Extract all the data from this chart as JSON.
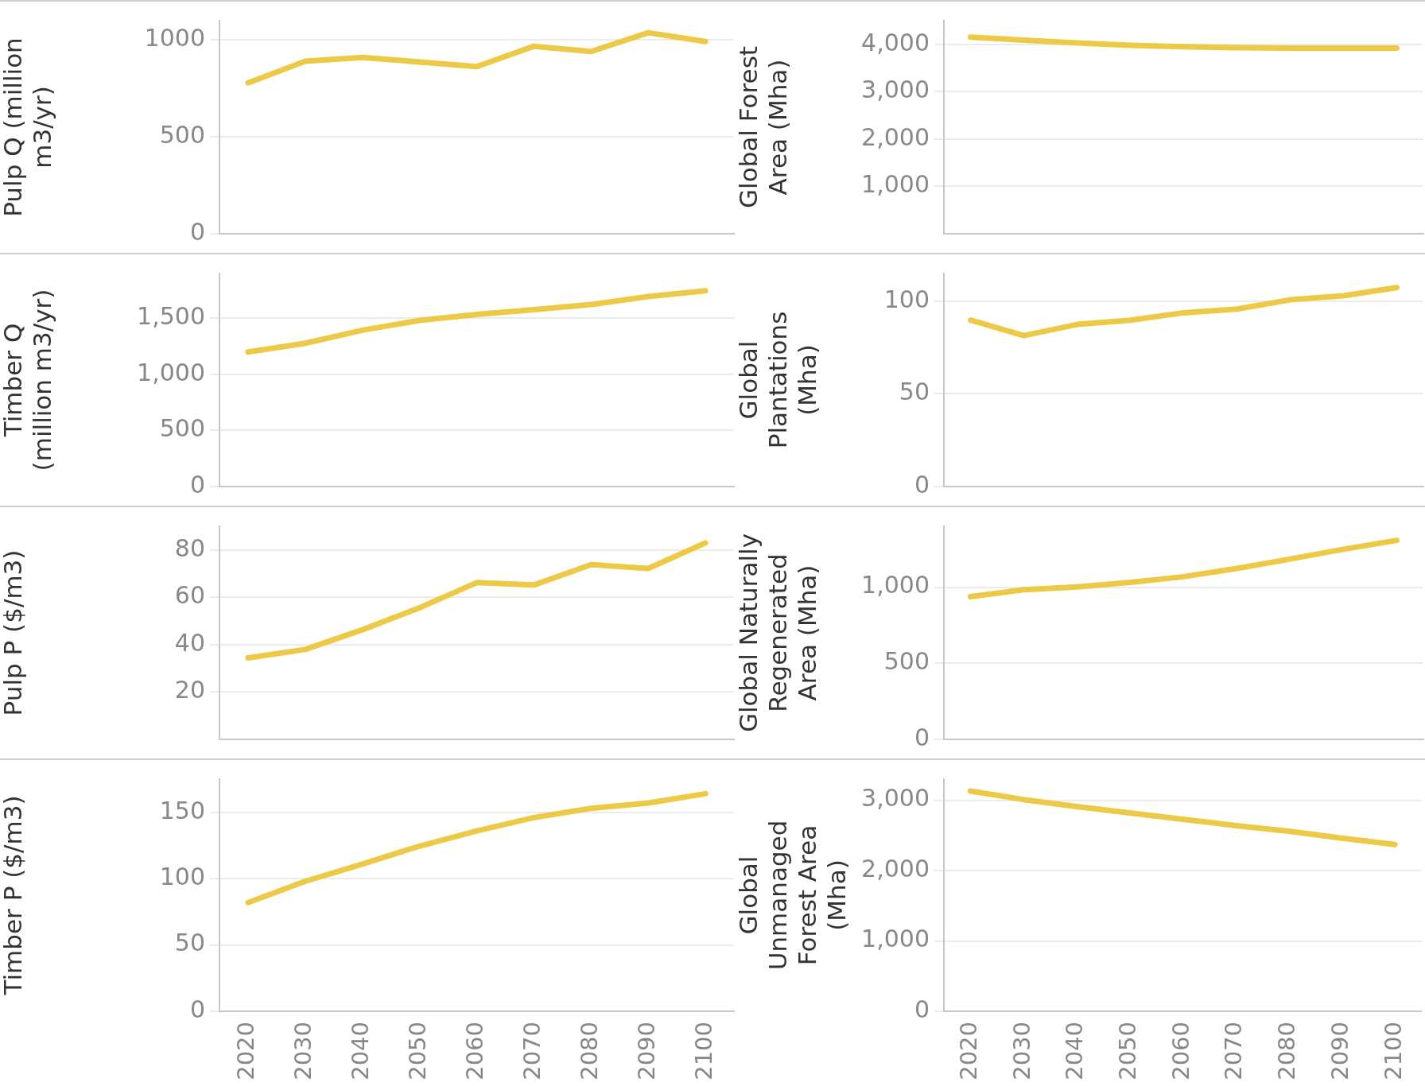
{
  "chart_data": [
    {
      "type": "line",
      "ylabel": "Pulp Q (million m3/yr)",
      "categories": [
        "2020",
        "2030",
        "2040",
        "2050",
        "2060",
        "2070",
        "2080",
        "2090",
        "2100"
      ],
      "series": [
        {
          "color": "#edc948",
          "values": [
            779,
            891,
            910,
            887,
            863,
            968,
            941,
            1038,
            992
          ]
        }
      ],
      "ylim": [
        0,
        1100
      ],
      "yticks": [
        0,
        500,
        1000
      ],
      "grid": "y",
      "tick_labels": "y",
      "marker": "none"
    },
    {
      "type": "line",
      "ylabel": "Global Forest Area (Mha)",
      "categories": [
        "2020",
        "2030",
        "2040",
        "2050",
        "2060",
        "2070",
        "2080",
        "2090",
        "2100"
      ],
      "series": [
        {
          "color": "#edc948",
          "values": [
            4150,
            4090,
            4030,
            3980,
            3950,
            3930,
            3920,
            3920,
            3920
          ]
        }
      ],
      "ylim": [
        0,
        4500
      ],
      "yticks": [
        {
          "value": 1000,
          "label": "1,000"
        },
        {
          "value": 2000,
          "label": "2,000"
        },
        {
          "value": 3000,
          "label": "3,000"
        },
        {
          "value": 4000,
          "label": "4,000"
        }
      ],
      "grid": "y",
      "tick_labels": "y",
      "marker": "none"
    },
    {
      "type": "line",
      "ylabel": "Timber Q (million m3/yr)",
      "categories": [
        "2020",
        "2030",
        "2040",
        "2050",
        "2060",
        "2070",
        "2080",
        "2090",
        "2100"
      ],
      "series": [
        {
          "color": "#edc948",
          "values": [
            1200,
            1278,
            1394,
            1482,
            1535,
            1577,
            1623,
            1694,
            1746
          ]
        }
      ],
      "ylim": [
        0,
        1900
      ],
      "yticks": [
        0,
        500,
        {
          "value": 1000,
          "label": "1,000"
        },
        {
          "value": 1500,
          "label": "1,500"
        }
      ],
      "grid": "y",
      "tick_labels": "y",
      "marker": "none"
    },
    {
      "type": "line",
      "ylabel": "Global Plantations (Mha)",
      "categories": [
        "2020",
        "2030",
        "2040",
        "2050",
        "2060",
        "2070",
        "2080",
        "2090",
        "2100"
      ],
      "series": [
        {
          "color": "#edc948",
          "values": [
            89.8,
            81.5,
            87.5,
            89.8,
            93.8,
            95.8,
            100.8,
            103,
            107.4
          ]
        }
      ],
      "ylim": [
        0,
        115
      ],
      "yticks": [
        0,
        50,
        100
      ],
      "grid": "y",
      "tick_labels": "y",
      "marker": "none"
    },
    {
      "type": "line",
      "ylabel": "Pulp P ($/m3)",
      "categories": [
        "2020",
        "2030",
        "2040",
        "2050",
        "2060",
        "2070",
        "2080",
        "2090",
        "2100"
      ],
      "series": [
        {
          "color": "#edc948",
          "values": [
            34.4,
            38,
            46.3,
            55.6,
            66.2,
            65.2,
            73.8,
            72.2,
            83
          ]
        }
      ],
      "ylim": [
        0,
        90
      ],
      "yticks": [
        20,
        40,
        60,
        80
      ],
      "grid": "y",
      "tick_labels": "y",
      "marker": "none"
    },
    {
      "type": "line",
      "ylabel": "Global Naturally Regenerated Area (Mha)",
      "categories": [
        "2020",
        "2030",
        "2040",
        "2050",
        "2060",
        "2070",
        "2080",
        "2090",
        "2100"
      ],
      "series": [
        {
          "color": "#edc948",
          "values": [
            938,
            983,
            1002,
            1032,
            1069,
            1123,
            1185,
            1249,
            1308
          ]
        }
      ],
      "ylim": [
        0,
        1400
      ],
      "yticks": [
        0,
        500,
        {
          "value": 1000,
          "label": "1,000"
        }
      ],
      "grid": "y",
      "tick_labels": "y",
      "marker": "none"
    },
    {
      "type": "line",
      "ylabel": "Timber P ($/m3)",
      "categories": [
        "2020",
        "2030",
        "2040",
        "2050",
        "2060",
        "2070",
        "2080",
        "2090",
        "2100"
      ],
      "series": [
        {
          "color": "#edc948",
          "values": [
            82,
            98,
            111,
            124.5,
            136,
            146,
            153,
            157,
            164
          ]
        }
      ],
      "ylim": [
        0,
        175
      ],
      "yticks": [
        0,
        50,
        100,
        150
      ],
      "grid": "y",
      "marker": "none"
    },
    {
      "type": "line",
      "ylabel": "Global Unmanaged Forest Area (Mha)",
      "categories": [
        "2020",
        "2030",
        "2040",
        "2050",
        "2060",
        "2070",
        "2080",
        "2090",
        "2100"
      ],
      "series": [
        {
          "color": "#edc948",
          "values": [
            3130,
            3010,
            2910,
            2820,
            2730,
            2640,
            2560,
            2460,
            2370
          ]
        }
      ],
      "ylim": [
        0,
        3300
      ],
      "yticks": [
        0,
        {
          "value": 1000,
          "label": "1,000"
        },
        {
          "value": 2000,
          "label": "2,000"
        },
        {
          "value": 3000,
          "label": "3,000"
        }
      ],
      "grid": "y",
      "marker": "none"
    }
  ]
}
